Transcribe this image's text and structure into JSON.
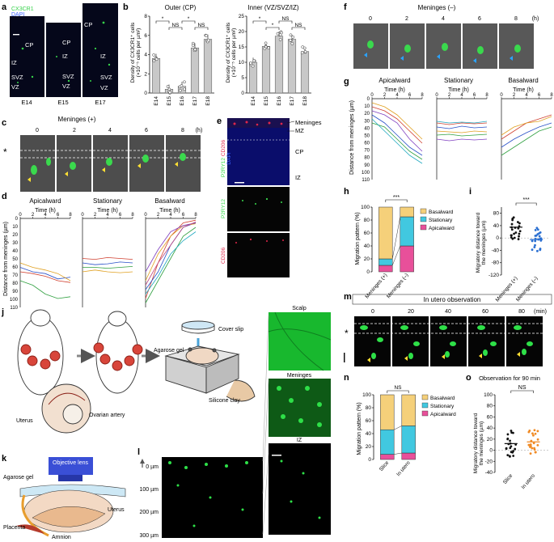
{
  "panels": {
    "a": {
      "letter": "a",
      "legend": [
        "CX3CR1",
        "DAPI"
      ],
      "layers": [
        "CP",
        "IZ",
        "SVZ",
        "VZ"
      ],
      "ages": [
        "E14",
        "E15",
        "E17"
      ]
    },
    "b": {
      "letter": "b",
      "titles": [
        "Outer (CP)",
        "Inner (VZ/SVZ/IZ)"
      ],
      "ylabel_lines": [
        "Density of CX3CR1⁺ cells",
        "(×10⁻⁵ cells per µm²)"
      ]
    },
    "c": {
      "letter": "c",
      "title": "Meninges (+)",
      "times": [
        "0",
        "2",
        "4",
        "6",
        "8"
      ],
      "unit": "(h)",
      "star": "*"
    },
    "d": {
      "letter": "d",
      "groups": [
        "Apicalward",
        "Stationary",
        "Basalward"
      ],
      "xlabel": "Time (h)",
      "ylabel": "Distance from meninges (µm)"
    },
    "e": {
      "letter": "e",
      "labels": [
        "P2RY12",
        "CD206",
        "DAPI"
      ],
      "zones": [
        "Meninges",
        "MZ",
        "CP",
        "IZ"
      ],
      "sub": [
        "P2RY12",
        "CD206"
      ]
    },
    "f": {
      "letter": "f",
      "title": "Meninges (–)",
      "times": [
        "0",
        "2",
        "4",
        "6",
        "8"
      ],
      "unit": "(h)"
    },
    "g": {
      "letter": "g",
      "groups": [
        "Apicalward",
        "Stationary",
        "Basalward"
      ],
      "xlabel": "Time (h)",
      "ylabel": "Distance from meninges (µm)"
    },
    "h": {
      "letter": "h",
      "ylabel": "Migration pattern (%)",
      "legend": [
        "Basalward",
        "Stationary",
        "Apicalward"
      ],
      "sig": "***",
      "categories": [
        "Meninges (+)",
        "Meninges (–)"
      ]
    },
    "i": {
      "letter": "i",
      "ylabel_lines": [
        "Migratory distance toward",
        "the meninges (µm)"
      ],
      "sig": "***",
      "categories": [
        "Meninges (+)",
        "Meninges (–)"
      ]
    },
    "j": {
      "letter": "j",
      "labels": [
        "Uterus",
        "Ovarian artery",
        "Cover slip",
        "Agarose gel",
        "Silicone clay",
        "Scalp",
        "Meninges",
        "IZ"
      ]
    },
    "k": {
      "letter": "k",
      "labels": [
        "Objective lens",
        "Agarose gel",
        "Uterus",
        "Placenta",
        "Amnion"
      ]
    },
    "l": {
      "letter": "l",
      "depths": [
        "0 µm",
        "100 µm",
        "200 µm",
        "300 µm"
      ]
    },
    "m": {
      "letter": "m",
      "title": "In utero observation",
      "times": [
        "0",
        "20",
        "40",
        "60",
        "80"
      ],
      "unit": "(min)",
      "star": "*"
    },
    "n": {
      "letter": "n",
      "ylabel": "Migration pattern (%)",
      "legend": [
        "Basalward",
        "Stationary",
        "Apicalward"
      ],
      "sig": "NS",
      "categories": [
        "Slice",
        "In utero"
      ]
    },
    "o": {
      "letter": "o",
      "title": "Observation for 90 min",
      "ylabel_lines": [
        "Migratory distance toward",
        "the meninges (µm)"
      ],
      "sig": "NS",
      "categories": [
        "Slice",
        "In utero"
      ]
    }
  },
  "chart_data": [
    {
      "type": "bar",
      "panel": "b-outer",
      "title": "Outer (CP)",
      "categories": [
        "E14",
        "E15",
        "E16",
        "E17",
        "E18"
      ],
      "values": [
        3.6,
        0.4,
        0.7,
        4.7,
        5.6
      ],
      "ylim": [
        0,
        8
      ],
      "yticks": [
        0,
        2,
        4,
        6,
        8
      ],
      "significance": [
        {
          "pair": [
            "E14",
            "E15"
          ],
          "label": "*"
        },
        {
          "pair": [
            "E15",
            "E16"
          ],
          "label": "NS"
        },
        {
          "pair": [
            "E16",
            "E17"
          ],
          "label": "*"
        },
        {
          "pair": [
            "E17",
            "E18"
          ],
          "label": "NS"
        }
      ]
    },
    {
      "type": "bar",
      "panel": "b-inner",
      "title": "Inner (VZ/SVZ/IZ)",
      "categories": [
        "E14",
        "E15",
        "E16",
        "E17",
        "E18"
      ],
      "values": [
        10,
        15.2,
        18.5,
        17.5,
        13.5
      ],
      "ylim": [
        0,
        25
      ],
      "yticks": [
        0,
        5,
        10,
        15,
        20,
        25
      ],
      "significance": [
        {
          "pair": [
            "E14",
            "E15"
          ],
          "label": "*"
        },
        {
          "pair": [
            "E15",
            "E16"
          ],
          "label": "*"
        },
        {
          "pair": [
            "E16",
            "E17"
          ],
          "label": "NS"
        },
        {
          "pair": [
            "E17",
            "E18"
          ],
          "label": "NS"
        }
      ]
    },
    {
      "type": "bar",
      "panel": "h",
      "stacked": true,
      "categories": [
        "Meninges (+)",
        "Meninges (–)"
      ],
      "ylim": [
        0,
        100
      ],
      "yticks": [
        0,
        20,
        40,
        60,
        80,
        100
      ],
      "series": [
        {
          "name": "Apicalward",
          "values": [
            10,
            40
          ],
          "color": "#e8509a"
        },
        {
          "name": "Stationary",
          "values": [
            10,
            45
          ],
          "color": "#41c8e0"
        },
        {
          "name": "Basalward",
          "values": [
            80,
            15
          ],
          "color": "#f5d07a"
        }
      ]
    },
    {
      "type": "scatter",
      "panel": "i",
      "categories": [
        "Meninges (+)",
        "Meninges (–)"
      ],
      "ylim": [
        -120,
        100
      ],
      "yticks": [
        -120,
        -80,
        -40,
        0,
        40,
        80
      ],
      "means": [
        35,
        -5
      ],
      "colors": [
        "#111111",
        "#2a6fd1"
      ]
    },
    {
      "type": "bar",
      "panel": "n",
      "stacked": true,
      "categories": [
        "Slice",
        "In utero"
      ],
      "ylim": [
        0,
        100
      ],
      "yticks": [
        0,
        20,
        40,
        60,
        80,
        100
      ],
      "series": [
        {
          "name": "Apicalward",
          "values": [
            8,
            10
          ],
          "color": "#e8509a"
        },
        {
          "name": "Stationary",
          "values": [
            38,
            42
          ],
          "color": "#41c8e0"
        },
        {
          "name": "Basalward",
          "values": [
            54,
            48
          ],
          "color": "#f5d07a"
        }
      ]
    },
    {
      "type": "scatter",
      "panel": "o",
      "categories": [
        "Slice",
        "In utero"
      ],
      "ylim": [
        -40,
        100
      ],
      "yticks": [
        -40,
        -20,
        0,
        20,
        40,
        60,
        80,
        100
      ],
      "means": [
        12,
        15
      ],
      "colors": [
        "#111111",
        "#f08a24"
      ]
    }
  ]
}
